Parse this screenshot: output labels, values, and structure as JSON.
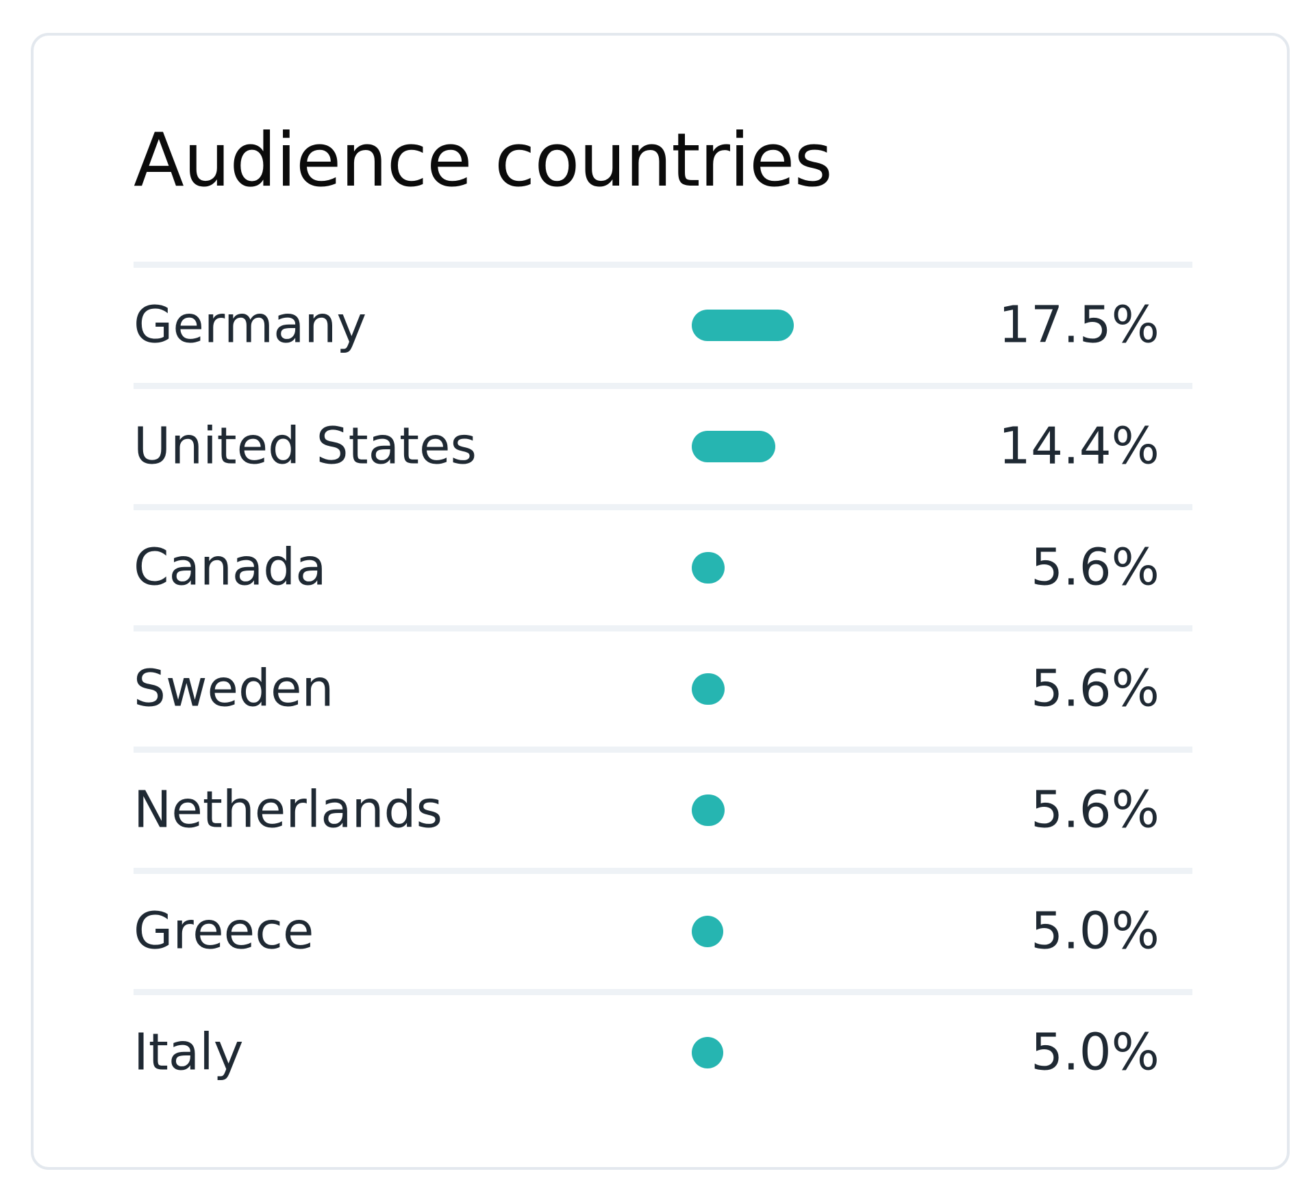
{
  "card": {
    "title": "Audience countries"
  },
  "accent_color": "#26b5b1",
  "rows": [
    {
      "country": "Germany",
      "percent_label": "17.5%",
      "value": 17.5
    },
    {
      "country": "United States",
      "percent_label": "14.4%",
      "value": 14.4
    },
    {
      "country": "Canada",
      "percent_label": "5.6%",
      "value": 5.6
    },
    {
      "country": "Sweden",
      "percent_label": "5.6%",
      "value": 5.6
    },
    {
      "country": "Netherlands",
      "percent_label": "5.6%",
      "value": 5.6
    },
    {
      "country": "Greece",
      "percent_label": "5.0%",
      "value": 5.0
    },
    {
      "country": "Italy",
      "percent_label": "5.0%",
      "value": 5.0
    }
  ]
}
